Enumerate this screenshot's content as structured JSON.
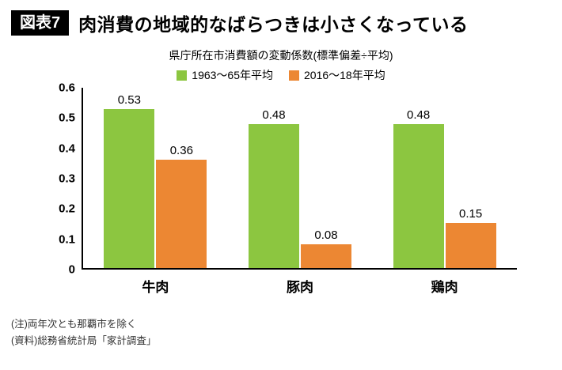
{
  "header": {
    "figure_label": "図表7",
    "title": "肉消費の地域的なばらつきは小さくなっている"
  },
  "chart_data": {
    "type": "bar",
    "title": "県庁所在市消費額の変動係数(標準偏差÷平均)",
    "categories": [
      "牛肉",
      "豚肉",
      "鶏肉"
    ],
    "series": [
      {
        "name": "1963〜65年平均",
        "color": "#8CC640",
        "values": [
          0.53,
          0.48,
          0.48
        ]
      },
      {
        "name": "2016〜18年平均",
        "color": "#EC8733",
        "values": [
          0.36,
          0.08,
          0.15
        ]
      }
    ],
    "ylim": [
      0,
      0.6
    ],
    "yticks": [
      0,
      0.1,
      0.2,
      0.3,
      0.4,
      0.5,
      0.6
    ],
    "grid": false,
    "legend_position": "top"
  },
  "notes": {
    "note1": "(注)両年次とも那覇市を除く",
    "note2": "(資料)総務省統計局「家計調査」"
  }
}
